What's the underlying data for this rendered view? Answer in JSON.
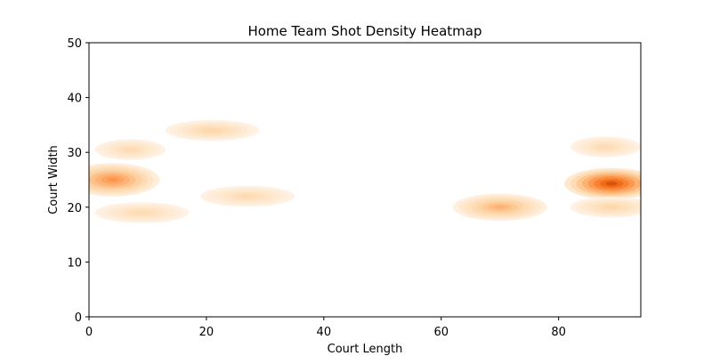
{
  "chart_data": {
    "type": "heatmap",
    "title": "Home Team Shot Density Heatmap",
    "xlabel": "Court Length",
    "ylabel": "Court Width",
    "xlim": [
      0,
      94
    ],
    "ylim": [
      0,
      50
    ],
    "xticks": [
      "0",
      "20",
      "40",
      "60",
      "80"
    ],
    "yticks": [
      "0",
      "10",
      "20",
      "30",
      "40",
      "50"
    ],
    "xtick_values": [
      0,
      20,
      40,
      60,
      80
    ],
    "ytick_values": [
      0,
      10,
      20,
      30,
      40,
      50
    ],
    "colormap": "Oranges",
    "grid": false,
    "density_blobs": [
      {
        "x": 4,
        "y": 25,
        "sx": 8,
        "sy": 1.6,
        "intensity": 0.55
      },
      {
        "x": 9,
        "y": 19,
        "sx": 8,
        "sy": 1.0,
        "intensity": 0.22
      },
      {
        "x": 7,
        "y": 30.5,
        "sx": 6,
        "sy": 1.0,
        "intensity": 0.22
      },
      {
        "x": 21,
        "y": 34,
        "sx": 8,
        "sy": 1.0,
        "intensity": 0.25
      },
      {
        "x": 27,
        "y": 22,
        "sx": 8,
        "sy": 1.0,
        "intensity": 0.22
      },
      {
        "x": 70,
        "y": 20,
        "sx": 8,
        "sy": 1.3,
        "intensity": 0.42
      },
      {
        "x": 89,
        "y": 24.3,
        "sx": 8,
        "sy": 1.5,
        "intensity": 0.85
      },
      {
        "x": 88,
        "y": 31,
        "sx": 6,
        "sy": 1.0,
        "intensity": 0.22
      },
      {
        "x": 89,
        "y": 20,
        "sx": 7,
        "sy": 1.0,
        "intensity": 0.25
      }
    ]
  }
}
